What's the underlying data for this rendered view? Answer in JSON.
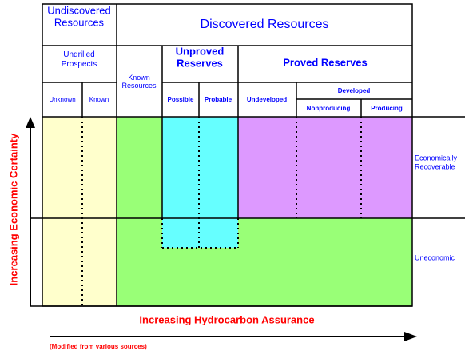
{
  "header": {
    "undiscovered": [
      "Undiscovered",
      "Resources"
    ],
    "discovered": "Discovered Resources",
    "undrilled": [
      "Undrilled",
      "Prospects"
    ],
    "known_resources": [
      "Known",
      "Resources"
    ],
    "unproved": [
      "Unproved",
      "Reserves"
    ],
    "proved": "Proved Reserves",
    "unknown": "Unknown",
    "known": "Known",
    "possible": "Possible",
    "probable": "Probable",
    "undeveloped": "Undeveloped",
    "developed": "Developed",
    "nonproducing": "Nonproducing",
    "producing": "Producing"
  },
  "rows": {
    "recoverable": [
      "Economically",
      "Recoverable"
    ],
    "uneconomic": "Uneconomic"
  },
  "axes": {
    "y_label": "Increasing Economic Certainty",
    "x_label": "Increasing Hydrocarbon Assurance"
  },
  "note": "(Modified from various sources)"
}
